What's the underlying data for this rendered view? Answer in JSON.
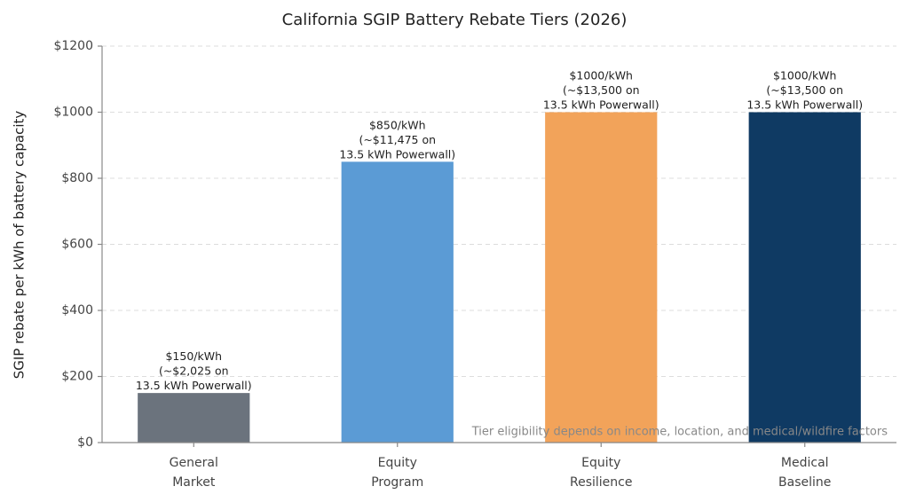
{
  "chart_data": {
    "type": "bar",
    "title": "California SGIP Battery Rebate Tiers (2026)",
    "y_label": "SGIP rebate per kWh of battery capacity",
    "annotation": "Tier eligibility depends on income, location, and medical/wildfire factors",
    "categories": [
      "General\nMarket",
      "Equity\nProgram",
      "Equity\nResilience",
      "Medical\nBaseline"
    ],
    "values": [
      150,
      850,
      1000,
      1000
    ],
    "value_labels": [
      "$150/kWh\n(~$2,025 on\n13.5 kWh Powerwall)",
      "$850/kWh\n(~$11,475 on\n13.5 kWh Powerwall)",
      "$1000/kWh\n(~$13,500 on\n13.5 kWh Powerwall)",
      "$1000/kWh\n(~$13,500 on\n13.5 kWh Powerwall)"
    ],
    "colors": [
      "#6b737d",
      "#5b9bd5",
      "#f2a35a",
      "#0f3a63"
    ],
    "ylim": [
      0,
      1200
    ],
    "yticks": [
      {
        "value": 0,
        "label": "$0"
      },
      {
        "value": 200,
        "label": "$200"
      },
      {
        "value": 400,
        "label": "$400"
      },
      {
        "value": 600,
        "label": "$600"
      },
      {
        "value": 800,
        "label": "$800"
      },
      {
        "value": 1000,
        "label": "$1000"
      },
      {
        "value": 1200,
        "label": "$1200"
      }
    ],
    "grid": true
  }
}
